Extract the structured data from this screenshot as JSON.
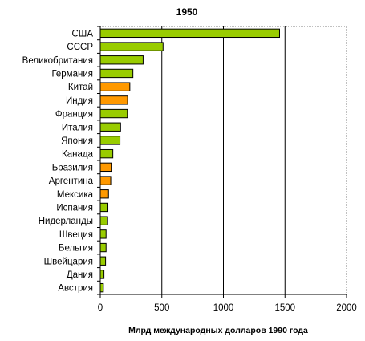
{
  "chart_data": {
    "type": "bar",
    "orientation": "horizontal",
    "title": "1950",
    "xlabel": "Млрд международных долларов 1990 года",
    "ylabel": "",
    "xlim": [
      0,
      2000
    ],
    "xticks": [
      "0",
      "500",
      "1000",
      "1500",
      "2000"
    ],
    "grid": "vertical",
    "legend": "none",
    "colors": {
      "green": "#99cc00",
      "orange": "#ff9900",
      "outline": "#000000"
    },
    "categories": [
      "США",
      "СССР",
      "Великобритания",
      "Германия",
      "Китай",
      "Индия",
      "Франция",
      "Италия",
      "Япония",
      "Канада",
      "Бразилия",
      "Аргентина",
      "Мексика",
      "Испания",
      "Нидерланды",
      "Швеция",
      "Бельгия",
      "Швейцария",
      "Дания",
      "Австрия"
    ],
    "values": [
      1456,
      510,
      348,
      265,
      240,
      222,
      220,
      165,
      160,
      102,
      89,
      85,
      67,
      62,
      60,
      47,
      47,
      43,
      30,
      25
    ],
    "bar_colors": [
      "green",
      "green",
      "green",
      "green",
      "orange",
      "orange",
      "green",
      "green",
      "green",
      "green",
      "orange",
      "orange",
      "orange",
      "green",
      "green",
      "green",
      "green",
      "green",
      "green",
      "green"
    ]
  }
}
